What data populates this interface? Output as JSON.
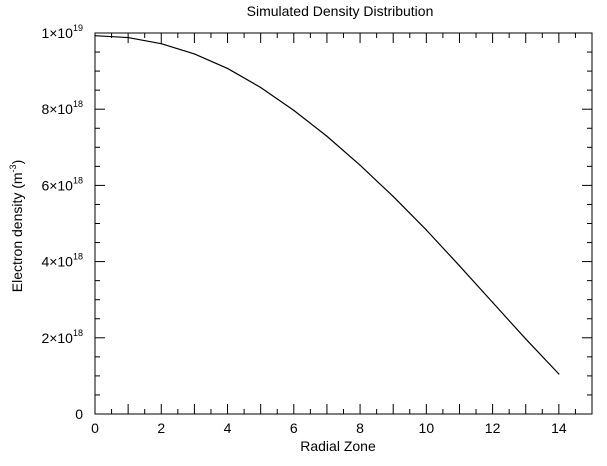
{
  "chart_data": {
    "type": "line",
    "title": "Simulated Density Distribution",
    "xlabel": "Radial Zone",
    "ylabel": {
      "text": "Electron density (m",
      "sup": "-3",
      "tail": ")"
    },
    "xlim": [
      0,
      15
    ],
    "ylim": [
      0,
      1e+19
    ],
    "x_ticks": [
      {
        "value": 0,
        "label": "0"
      },
      {
        "value": 2,
        "label": "2"
      },
      {
        "value": 4,
        "label": "4"
      },
      {
        "value": 6,
        "label": "6"
      },
      {
        "value": 8,
        "label": "8"
      },
      {
        "value": 10,
        "label": "10"
      },
      {
        "value": 12,
        "label": "12"
      },
      {
        "value": 14,
        "label": "14"
      }
    ],
    "y_ticks": [
      {
        "value": 0,
        "mantissa": "0",
        "exponent": ""
      },
      {
        "value": 2e+18,
        "mantissa": "2×10",
        "exponent": "18"
      },
      {
        "value": 4e+18,
        "mantissa": "4×10",
        "exponent": "18"
      },
      {
        "value": 6e+18,
        "mantissa": "6×10",
        "exponent": "18"
      },
      {
        "value": 8e+18,
        "mantissa": "8×10",
        "exponent": "18"
      },
      {
        "value": 1e+19,
        "mantissa": "1×10",
        "exponent": "19"
      }
    ],
    "x_minor_step": 0.5,
    "y_minor_step": 5e+17,
    "grid": false,
    "series": [
      {
        "color": "#000000",
        "x": [
          0,
          1,
          2,
          3,
          4,
          5,
          6,
          7,
          8,
          9,
          10,
          11,
          12,
          13,
          14
        ],
        "y": [
          9.93e+18,
          9.88e+18,
          9.72e+18,
          9.45e+18,
          9.07e+18,
          8.57e+18,
          7.97e+18,
          7.29e+18,
          6.53e+18,
          5.71e+18,
          4.83e+18,
          3.89e+18,
          2.93e+18,
          1.97e+18,
          1.05e+18
        ]
      }
    ]
  }
}
